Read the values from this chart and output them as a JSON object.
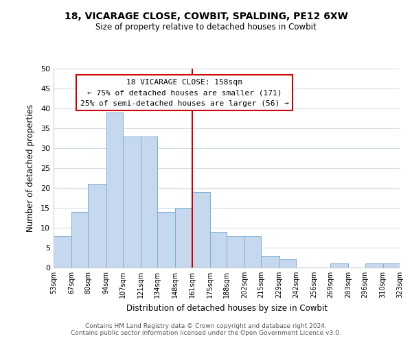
{
  "title": "18, VICARAGE CLOSE, COWBIT, SPALDING, PE12 6XW",
  "subtitle": "Size of property relative to detached houses in Cowbit",
  "xlabel": "Distribution of detached houses by size in Cowbit",
  "ylabel": "Number of detached properties",
  "bar_color": "#c5d8ee",
  "bar_edge_color": "#7aafd4",
  "grid_color": "#d0dce8",
  "vline_x": 161,
  "vline_color": "#cc0000",
  "bin_edges": [
    53,
    67,
    80,
    94,
    107,
    121,
    134,
    148,
    161,
    175,
    188,
    202,
    215,
    229,
    242,
    256,
    269,
    283,
    296,
    310,
    323
  ],
  "bin_labels": [
    "53sqm",
    "67sqm",
    "80sqm",
    "94sqm",
    "107sqm",
    "121sqm",
    "134sqm",
    "148sqm",
    "161sqm",
    "175sqm",
    "188sqm",
    "202sqm",
    "215sqm",
    "229sqm",
    "242sqm",
    "256sqm",
    "269sqm",
    "283sqm",
    "296sqm",
    "310sqm",
    "323sqm"
  ],
  "counts": [
    8,
    14,
    21,
    39,
    33,
    33,
    14,
    15,
    19,
    9,
    8,
    8,
    3,
    2,
    0,
    0,
    1,
    0,
    1,
    1
  ],
  "ylim": [
    0,
    50
  ],
  "yticks": [
    0,
    5,
    10,
    15,
    20,
    25,
    30,
    35,
    40,
    45,
    50
  ],
  "annotation_title": "18 VICARAGE CLOSE: 158sqm",
  "annotation_line1": "← 75% of detached houses are smaller (171)",
  "annotation_line2": "25% of semi-detached houses are larger (56) →",
  "footer1": "Contains HM Land Registry data © Crown copyright and database right 2024.",
  "footer2": "Contains public sector information licensed under the Open Government Licence v3.0.",
  "background_color": "#ffffff",
  "plot_background": "#ffffff"
}
